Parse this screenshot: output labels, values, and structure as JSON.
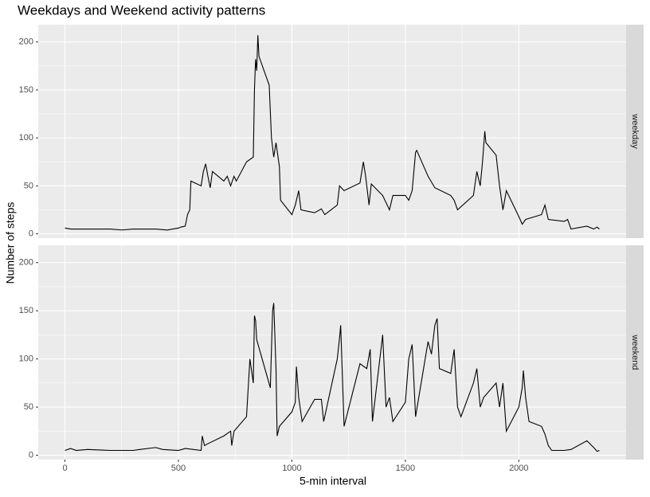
{
  "chart_data": {
    "type": "line",
    "title": "Weekdays and Weekend activity patterns",
    "xlabel": "5-min interval",
    "ylabel": "Number of steps",
    "xlim": [
      -117.75,
      2472.75
    ],
    "xticks": [
      0,
      500,
      1000,
      1500,
      2000
    ],
    "ylim": [
      -4.5,
      218
    ],
    "yticks": [
      0,
      50,
      100,
      150,
      200
    ],
    "grid": true,
    "series": [
      {
        "name": "weekday",
        "color": "#000000",
        "x": [
          0,
          25,
          50,
          100,
          150,
          200,
          250,
          300,
          350,
          400,
          450,
          500,
          510,
          530,
          540,
          550,
          555,
          600,
          610,
          620,
          630,
          640,
          650,
          700,
          715,
          730,
          745,
          755,
          800,
          830,
          835,
          840,
          845,
          850,
          855,
          900,
          910,
          920,
          930,
          945,
          950,
          1000,
          1015,
          1030,
          1040,
          1100,
          1130,
          1145,
          1200,
          1210,
          1230,
          1300,
          1315,
          1325,
          1340,
          1350,
          1400,
          1430,
          1445,
          1500,
          1515,
          1530,
          1545,
          1550,
          1600,
          1630,
          1700,
          1715,
          1730,
          1800,
          1815,
          1830,
          1840,
          1850,
          1855,
          1900,
          1915,
          1930,
          1945,
          2000,
          2015,
          2030,
          2100,
          2115,
          2130,
          2200,
          2215,
          2230,
          2300,
          2330,
          2345,
          2355
        ],
        "values": [
          6,
          5,
          5,
          5,
          5,
          5,
          4,
          5,
          5,
          5,
          4,
          6,
          7,
          8,
          20,
          25,
          55,
          50,
          65,
          73,
          60,
          48,
          65,
          55,
          60,
          50,
          60,
          55,
          75,
          80,
          150,
          182,
          170,
          207,
          185,
          155,
          100,
          80,
          95,
          70,
          35,
          20,
          30,
          45,
          25,
          22,
          26,
          20,
          30,
          50,
          45,
          53,
          75,
          60,
          30,
          52,
          40,
          25,
          40,
          40,
          35,
          45,
          85,
          87,
          60,
          48,
          40,
          35,
          25,
          40,
          65,
          50,
          75,
          107,
          95,
          82,
          50,
          25,
          45,
          18,
          10,
          15,
          20,
          30,
          15,
          13,
          15,
          5,
          8,
          5,
          7,
          5
        ]
      },
      {
        "name": "weekend",
        "color": "#000000",
        "x": [
          0,
          25,
          50,
          100,
          200,
          300,
          330,
          400,
          430,
          500,
          530,
          600,
          605,
          615,
          630,
          700,
          730,
          735,
          745,
          800,
          815,
          830,
          835,
          840,
          845,
          905,
          915,
          920,
          930,
          935,
          945,
          1000,
          1015,
          1020,
          1030,
          1045,
          1100,
          1130,
          1140,
          1200,
          1210,
          1215,
          1230,
          1300,
          1330,
          1345,
          1355,
          1400,
          1415,
          1430,
          1445,
          1500,
          1515,
          1530,
          1545,
          1600,
          1615,
          1630,
          1640,
          1650,
          1700,
          1715,
          1730,
          1745,
          1800,
          1815,
          1830,
          1845,
          1900,
          1915,
          1930,
          1945,
          2000,
          2015,
          2020,
          2030,
          2045,
          2100,
          2115,
          2130,
          2145,
          2200,
          2230,
          2300,
          2330,
          2345,
          2355
        ],
        "values": [
          5,
          7,
          5,
          6,
          5,
          5,
          6,
          8,
          6,
          5,
          7,
          5,
          20,
          10,
          12,
          20,
          25,
          10,
          25,
          40,
          100,
          75,
          145,
          140,
          120,
          70,
          150,
          158,
          90,
          20,
          30,
          45,
          55,
          92,
          60,
          35,
          58,
          58,
          35,
          100,
          122,
          135,
          30,
          95,
          90,
          110,
          35,
          125,
          50,
          60,
          35,
          55,
          100,
          115,
          40,
          118,
          105,
          135,
          142,
          90,
          85,
          110,
          50,
          40,
          75,
          90,
          50,
          60,
          75,
          50,
          75,
          25,
          50,
          70,
          88,
          60,
          35,
          30,
          22,
          10,
          5,
          5,
          6,
          15,
          8,
          4,
          5
        ]
      }
    ]
  }
}
